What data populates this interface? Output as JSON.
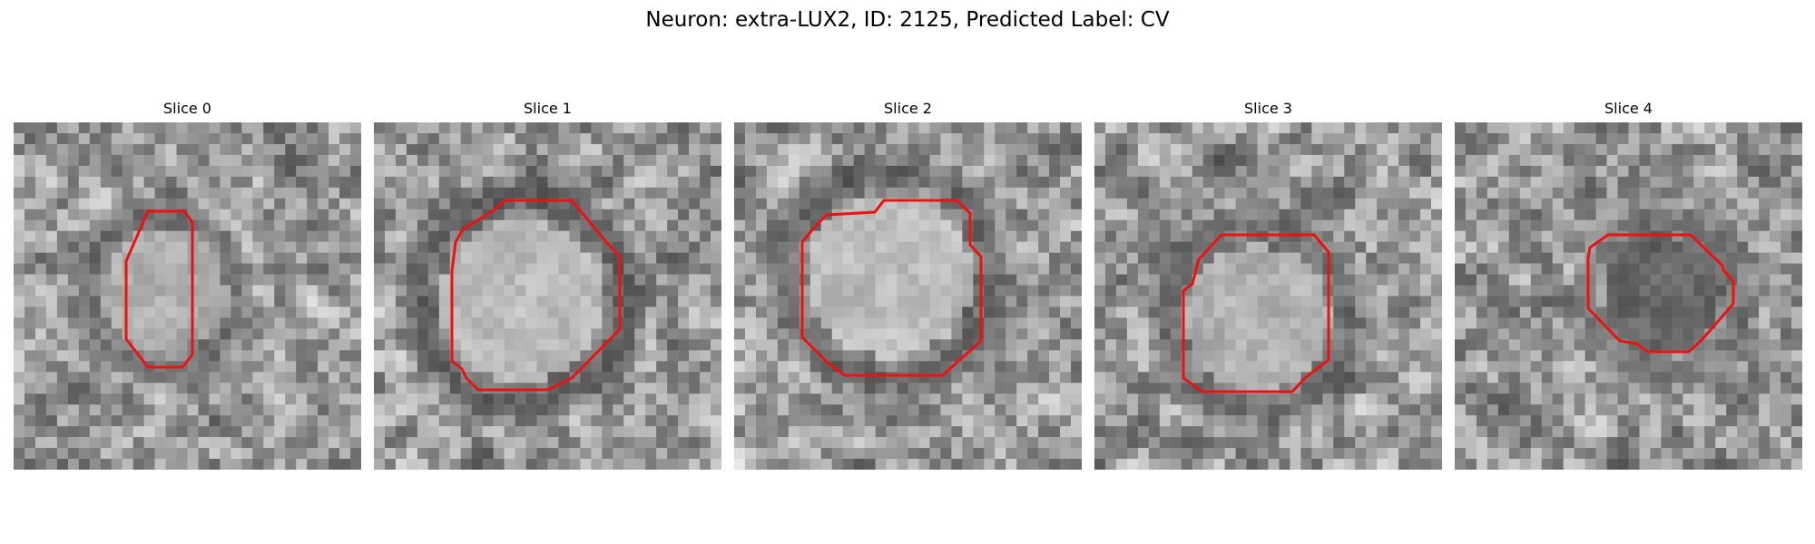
{
  "figure": {
    "title": "Neuron: extra-LUX2, ID: 2125, Predicted Label: CV",
    "panels": [
      {
        "title": "Slice 0",
        "seed": 11,
        "center_value": 0.72,
        "ring_value": 0.28
      },
      {
        "title": "Slice 1",
        "seed": 23,
        "center_value": 0.8,
        "ring_value": 0.22
      },
      {
        "title": "Slice 2",
        "seed": 37,
        "center_value": 0.82,
        "ring_value": 0.25
      },
      {
        "title": "Slice 3",
        "seed": 41,
        "center_value": 0.74,
        "ring_value": 0.27
      },
      {
        "title": "Slice 4",
        "seed": 59,
        "center_value": 0.3,
        "ring_value": 0.38
      }
    ],
    "contour_color": "#ee1111",
    "colormap": "gray"
  }
}
